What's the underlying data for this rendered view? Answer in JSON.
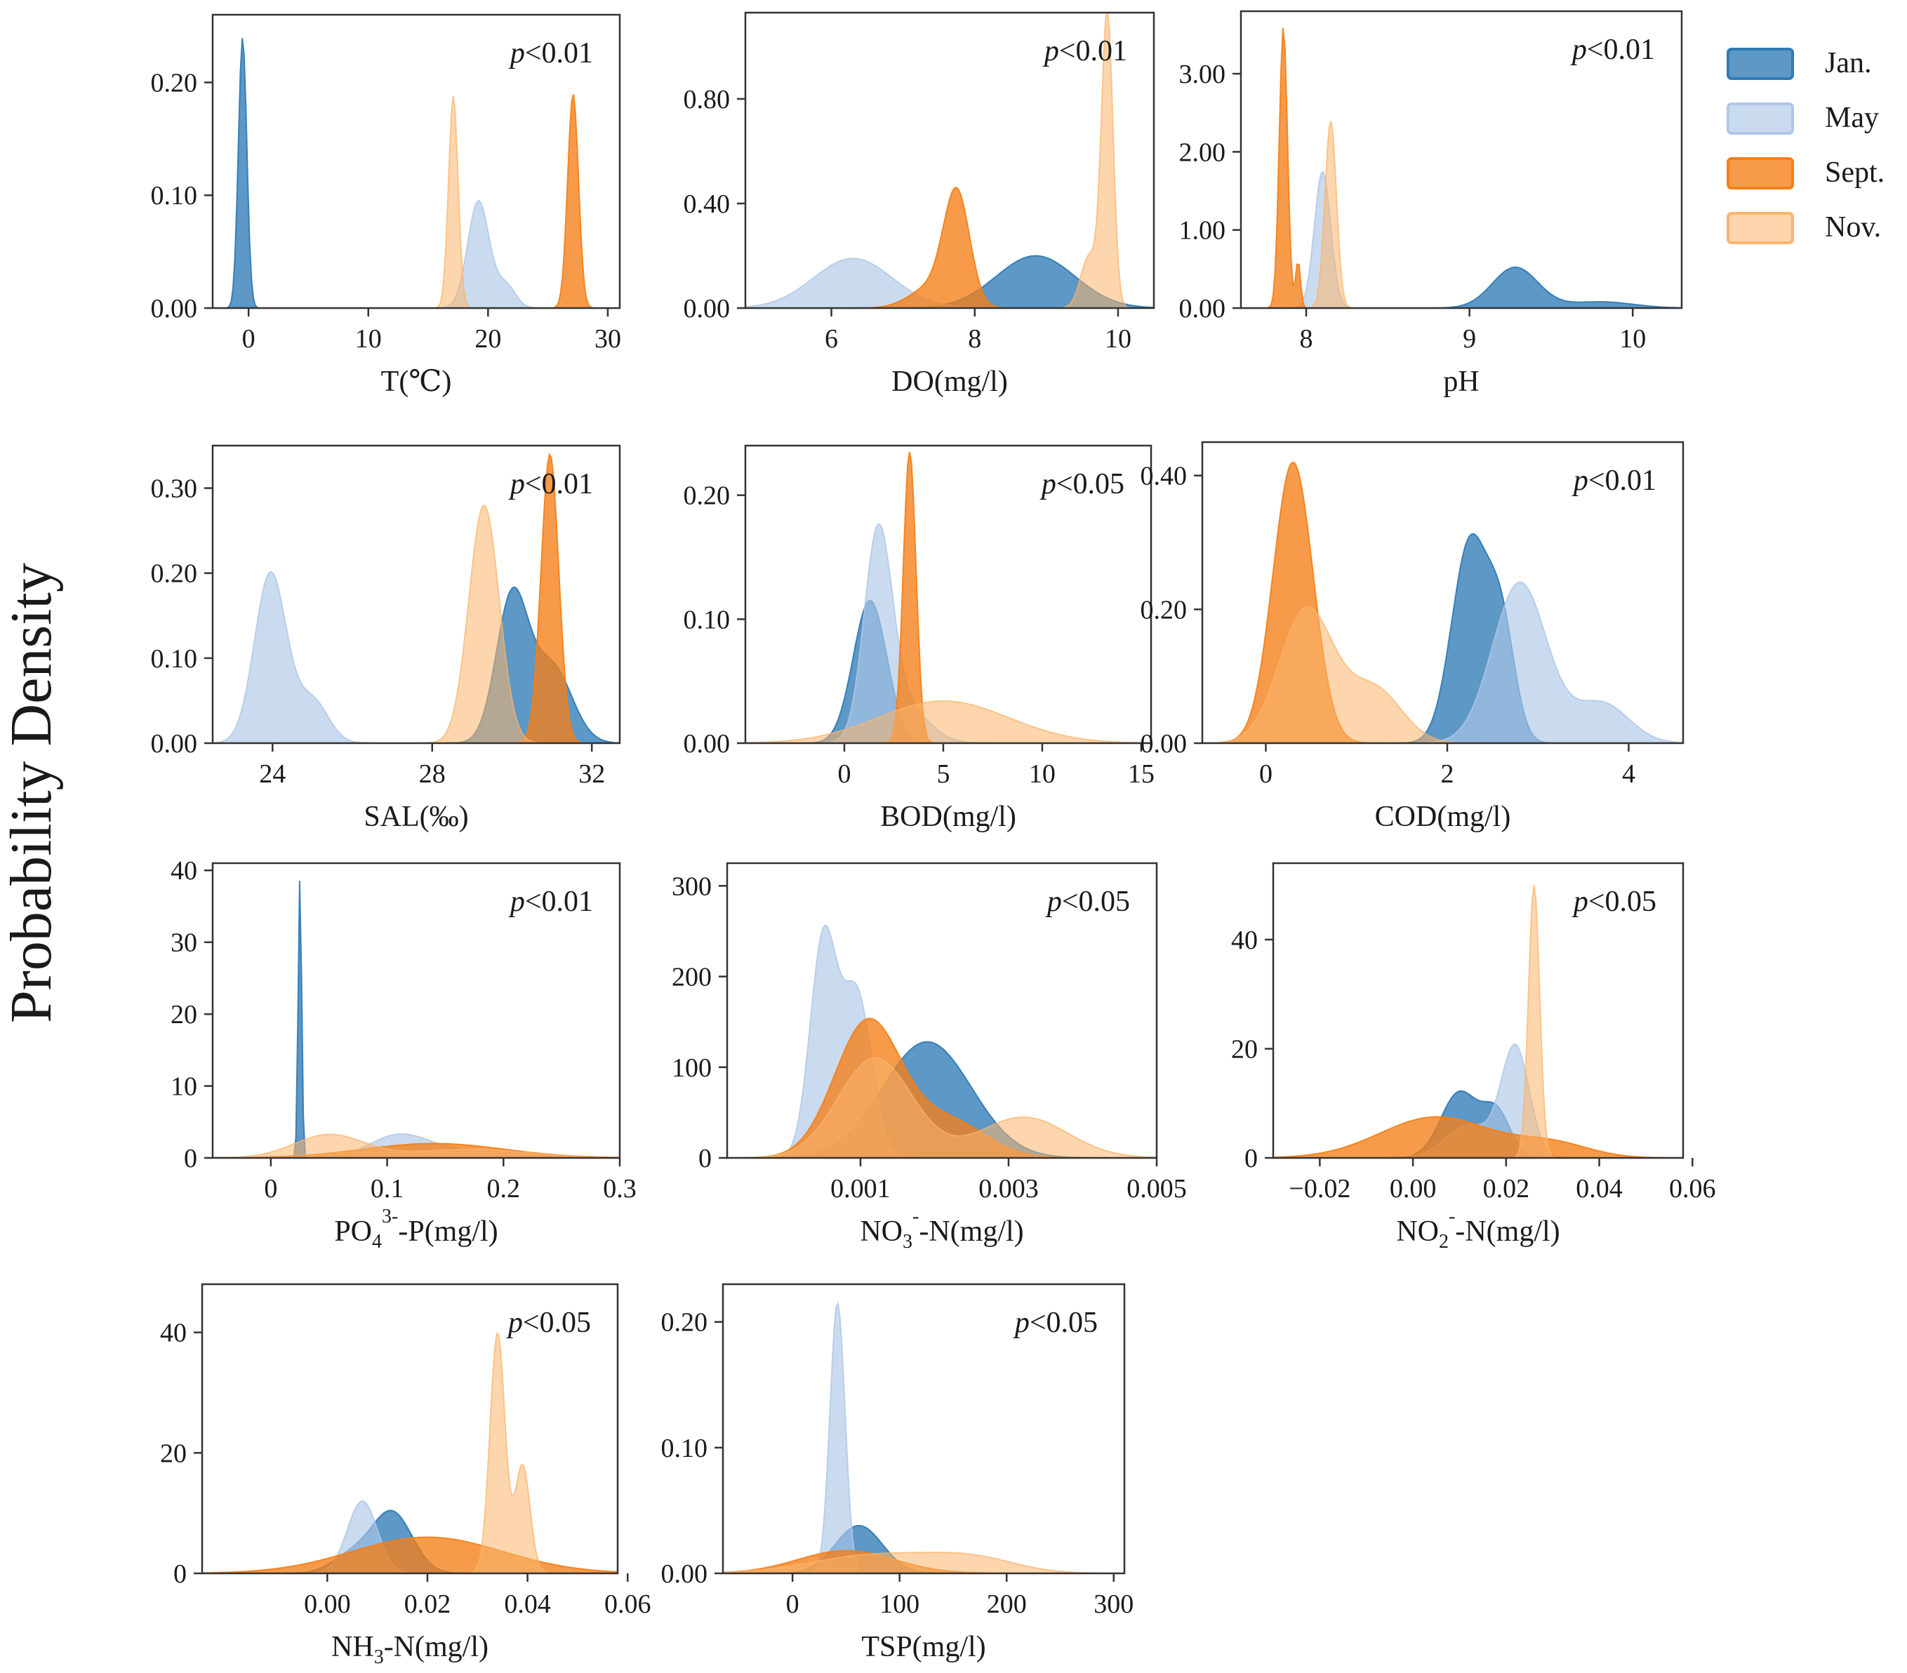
{
  "figure": {
    "y_label": "Probability Density",
    "legend": [
      {
        "key": "jan",
        "label": "Jan.",
        "color": "#2f7bb6",
        "opacity": 0.78
      },
      {
        "key": "may",
        "label": "May",
        "color": "#aec7e8",
        "opacity": 0.65
      },
      {
        "key": "sept",
        "label": "Sept.",
        "color": "#f57f17",
        "opacity": 0.78
      },
      {
        "key": "nov",
        "label": "Nov.",
        "color": "#fbb46b",
        "opacity": 0.55
      }
    ]
  },
  "chart_data": [
    {
      "id": "T",
      "type": "area",
      "title": "",
      "xlabel_parts": [
        [
          "T(",
          "n"
        ],
        [
          "℃",
          "n"
        ],
        [
          ")",
          "n"
        ]
      ],
      "pvalue": "<0.01",
      "xlim": [
        -3,
        31
      ],
      "ylim": [
        0,
        0.26
      ],
      "xticks": [
        {
          "v": 0,
          "t": "0"
        },
        {
          "v": 10,
          "t": "10"
        },
        {
          "v": 20,
          "t": "20"
        },
        {
          "v": 30,
          "t": "30"
        }
      ],
      "yticks": [
        {
          "v": 0,
          "t": "0.00"
        },
        {
          "v": 0.1,
          "t": "0.10"
        },
        {
          "v": 0.2,
          "t": "0.20"
        }
      ],
      "series": [
        {
          "key": "jan",
          "comps": [
            [
              -0.5,
              0.35,
              0.24
            ]
          ]
        },
        {
          "key": "may",
          "comps": [
            [
              19.2,
              0.9,
              0.095
            ],
            [
              21.5,
              0.8,
              0.02
            ]
          ]
        },
        {
          "key": "sept",
          "comps": [
            [
              27.1,
              0.45,
              0.19
            ]
          ]
        },
        {
          "key": "nov",
          "comps": [
            [
              17.1,
              0.4,
              0.188
            ]
          ]
        }
      ]
    },
    {
      "id": "DO",
      "type": "area",
      "xlabel_parts": [
        [
          "DO(mg/l)",
          "n"
        ]
      ],
      "pvalue": "<0.01",
      "xlim": [
        4.8,
        10.5
      ],
      "ylim": [
        0,
        1.13
      ],
      "xticks": [
        {
          "v": 6,
          "t": "6"
        },
        {
          "v": 8,
          "t": "8"
        },
        {
          "v": 10,
          "t": "10"
        }
      ],
      "yticks": [
        {
          "v": 0,
          "t": "0.00"
        },
        {
          "v": 0.4,
          "t": "0.40"
        },
        {
          "v": 0.8,
          "t": "0.80"
        }
      ],
      "series": [
        {
          "key": "jan",
          "comps": [
            [
              8.85,
              0.55,
              0.2
            ]
          ]
        },
        {
          "key": "may",
          "comps": [
            [
              6.3,
              0.55,
              0.19
            ]
          ]
        },
        {
          "key": "sept",
          "comps": [
            [
              7.75,
              0.18,
              0.42
            ],
            [
              7.4,
              0.3,
              0.08
            ]
          ]
        },
        {
          "key": "nov",
          "comps": [
            [
              9.85,
              0.08,
              1.12
            ],
            [
              9.6,
              0.12,
              0.2
            ]
          ]
        }
      ]
    },
    {
      "id": "pH",
      "type": "area",
      "xlabel_parts": [
        [
          "pH",
          "n"
        ]
      ],
      "pvalue": "<0.01",
      "xlim": [
        7.6,
        10.3
      ],
      "ylim": [
        0,
        3.8
      ],
      "xticks": [
        {
          "v": 8,
          "t": "8"
        },
        {
          "v": 9,
          "t": "9"
        },
        {
          "v": 10,
          "t": "10"
        }
      ],
      "yticks": [
        {
          "v": 0,
          "t": "0.00"
        },
        {
          "v": 1,
          "t": "1.00"
        },
        {
          "v": 2,
          "t": "2.00"
        },
        {
          "v": 3,
          "t": "3.00"
        }
      ],
      "series": [
        {
          "key": "jan",
          "comps": [
            [
              9.28,
              0.14,
              0.52
            ],
            [
              9.8,
              0.2,
              0.08
            ]
          ]
        },
        {
          "key": "may",
          "comps": [
            [
              8.1,
              0.05,
              1.75
            ]
          ]
        },
        {
          "key": "sept",
          "comps": [
            [
              7.86,
              0.025,
              3.6
            ],
            [
              7.95,
              0.015,
              0.6
            ]
          ]
        },
        {
          "key": "nov",
          "comps": [
            [
              8.15,
              0.035,
              2.4
            ]
          ]
        }
      ]
    },
    {
      "id": "SAL",
      "type": "area",
      "xlabel_parts": [
        [
          "SAL(‰)",
          "n"
        ]
      ],
      "pvalue": "<0.01",
      "xlim": [
        22.5,
        32.7
      ],
      "ylim": [
        0,
        0.35
      ],
      "xticks": [
        {
          "v": 24,
          "t": "24"
        },
        {
          "v": 28,
          "t": "28"
        },
        {
          "v": 32,
          "t": "32"
        }
      ],
      "yticks": [
        {
          "v": 0,
          "t": "0.00"
        },
        {
          "v": 0.1,
          "t": "0.10"
        },
        {
          "v": 0.2,
          "t": "0.20"
        },
        {
          "v": 0.3,
          "t": "0.30"
        }
      ],
      "series": [
        {
          "key": "jan",
          "comps": [
            [
              30.0,
              0.4,
              0.17
            ],
            [
              31.0,
              0.5,
              0.09
            ]
          ]
        },
        {
          "key": "may",
          "comps": [
            [
              23.95,
              0.4,
              0.2
            ],
            [
              25.0,
              0.4,
              0.05
            ]
          ]
        },
        {
          "key": "sept",
          "comps": [
            [
              30.95,
              0.22,
              0.34
            ]
          ]
        },
        {
          "key": "nov",
          "comps": [
            [
              29.3,
              0.38,
              0.28
            ]
          ]
        }
      ]
    },
    {
      "id": "BOD",
      "type": "area",
      "xlabel_parts": [
        [
          "BOD(mg/l)",
          "n"
        ]
      ],
      "pvalue": "<0.05",
      "xlim": [
        -5,
        15.5
      ],
      "ylim": [
        0,
        0.24
      ],
      "xticks": [
        {
          "v": 0,
          "t": "0"
        },
        {
          "v": 5,
          "t": "5"
        },
        {
          "v": 10,
          "t": "10"
        },
        {
          "v": 15,
          "t": "15"
        }
      ],
      "yticks": [
        {
          "v": 0,
          "t": "0.00"
        },
        {
          "v": 0.1,
          "t": "0.10"
        },
        {
          "v": 0.2,
          "t": "0.20"
        }
      ],
      "series": [
        {
          "key": "jan",
          "comps": [
            [
              1.3,
              0.85,
              0.115
            ]
          ]
        },
        {
          "key": "may",
          "comps": [
            [
              1.7,
              0.7,
              0.16
            ],
            [
              3.0,
              1.2,
              0.03
            ]
          ]
        },
        {
          "key": "sept",
          "comps": [
            [
              3.3,
              0.32,
              0.235
            ]
          ]
        },
        {
          "key": "nov",
          "comps": [
            [
              5.0,
              3.3,
              0.034
            ]
          ]
        }
      ]
    },
    {
      "id": "COD",
      "type": "area",
      "xlabel_parts": [
        [
          "COD(mg/l)",
          "n"
        ]
      ],
      "pvalue": "<0.01",
      "xlim": [
        -0.7,
        4.6
      ],
      "ylim": [
        0,
        0.45
      ],
      "xticks": [
        {
          "v": 0,
          "t": "0"
        },
        {
          "v": 2,
          "t": "2"
        },
        {
          "v": 4,
          "t": "4"
        }
      ],
      "yticks": [
        {
          "v": 0,
          "t": "0.00"
        },
        {
          "v": 0.2,
          "t": "0.20"
        },
        {
          "v": 0.4,
          "t": "0.40"
        }
      ],
      "series": [
        {
          "key": "jan",
          "comps": [
            [
              2.25,
              0.2,
              0.3
            ],
            [
              2.6,
              0.15,
              0.16
            ]
          ]
        },
        {
          "key": "may",
          "comps": [
            [
              2.8,
              0.3,
              0.24
            ],
            [
              3.7,
              0.3,
              0.06
            ]
          ]
        },
        {
          "key": "sept",
          "comps": [
            [
              0.3,
              0.22,
              0.42
            ]
          ]
        },
        {
          "key": "nov",
          "comps": [
            [
              0.45,
              0.3,
              0.2
            ],
            [
              1.2,
              0.3,
              0.08
            ]
          ]
        }
      ]
    },
    {
      "id": "PO4",
      "type": "area",
      "xlabel_parts": [
        [
          "PO",
          "n"
        ],
        [
          "4",
          "sub"
        ],
        [
          "3-",
          "sup"
        ],
        [
          "-P(mg/l)",
          "n"
        ]
      ],
      "pvalue": "<0.01",
      "xlim": [
        -0.05,
        0.3
      ],
      "ylim": [
        0,
        41
      ],
      "xticks": [
        {
          "v": 0,
          "t": "0"
        },
        {
          "v": 0.1,
          "t": "0.1"
        },
        {
          "v": 0.2,
          "t": "0.2"
        },
        {
          "v": 0.3,
          "t": "0.3"
        }
      ],
      "yticks": [
        {
          "v": 0,
          "t": "0"
        },
        {
          "v": 10,
          "t": "10"
        },
        {
          "v": 20,
          "t": "20"
        },
        {
          "v": 30,
          "t": "30"
        },
        {
          "v": 40,
          "t": "40"
        }
      ],
      "series": [
        {
          "key": "jan",
          "comps": [
            [
              0.025,
              0.0015,
              39
            ]
          ]
        },
        {
          "key": "may",
          "comps": [
            [
              0.11,
              0.025,
              3.0
            ],
            [
              0.17,
              0.04,
              1.0
            ]
          ]
        },
        {
          "key": "sept",
          "comps": [
            [
              0.14,
              0.06,
              2.0
            ]
          ]
        },
        {
          "key": "nov",
          "comps": [
            [
              0.05,
              0.03,
              3.2
            ],
            [
              0.17,
              0.05,
              1.2
            ]
          ]
        }
      ]
    },
    {
      "id": "NO3",
      "type": "area",
      "xlabel_parts": [
        [
          "NO",
          "n"
        ],
        [
          "3",
          "sub"
        ],
        [
          "-",
          "sup"
        ],
        [
          "-N(mg/l)",
          "n"
        ]
      ],
      "pvalue": "<0.05",
      "xlim": [
        -0.0008,
        0.005
      ],
      "ylim": [
        0,
        325
      ],
      "xticks": [
        {
          "v": 0.001,
          "t": "0.001"
        },
        {
          "v": 0.003,
          "t": "0.003"
        },
        {
          "v": 0.005,
          "t": "0.005"
        }
      ],
      "yticks": [
        {
          "v": 0,
          "t": "0"
        },
        {
          "v": 100,
          "t": "100"
        },
        {
          "v": 200,
          "t": "200"
        },
        {
          "v": 300,
          "t": "300"
        }
      ],
      "series": [
        {
          "key": "jan",
          "comps": [
            [
              0.0019,
              0.0006,
              128
            ]
          ]
        },
        {
          "key": "may",
          "comps": [
            [
              0.0005,
              0.00018,
              240
            ],
            [
              0.00095,
              0.0002,
              180
            ]
          ]
        },
        {
          "key": "sept",
          "comps": [
            [
              0.0011,
              0.00045,
              150
            ],
            [
              0.0022,
              0.0005,
              40
            ]
          ]
        },
        {
          "key": "nov",
          "comps": [
            [
              0.0012,
              0.0005,
              110
            ],
            [
              0.0032,
              0.0006,
              45
            ]
          ]
        }
      ]
    },
    {
      "id": "NO2",
      "type": "area",
      "xlabel_parts": [
        [
          "NO",
          "n"
        ],
        [
          "2",
          "sub"
        ],
        [
          "-",
          "sup"
        ],
        [
          "-N(mg/l)",
          "n"
        ]
      ],
      "pvalue": "<0.05",
      "xlim": [
        -0.03,
        0.058
      ],
      "ylim": [
        0,
        54
      ],
      "xticks": [
        {
          "v": -0.02,
          "t": "−0.02"
        },
        {
          "v": 0,
          "t": "0.00"
        },
        {
          "v": 0.02,
          "t": "0.02"
        },
        {
          "v": 0.04,
          "t": "0.04"
        },
        {
          "v": 0.06,
          "t": "0.06"
        }
      ],
      "yticks": [
        {
          "v": 0,
          "t": "0"
        },
        {
          "v": 20,
          "t": "20"
        },
        {
          "v": 40,
          "t": "40"
        }
      ],
      "series": [
        {
          "key": "jan",
          "comps": [
            [
              0.01,
              0.004,
              12
            ],
            [
              0.018,
              0.003,
              8
            ]
          ]
        },
        {
          "key": "may",
          "comps": [
            [
              0.022,
              0.003,
              20
            ],
            [
              0.012,
              0.005,
              6
            ]
          ]
        },
        {
          "key": "sept",
          "comps": [
            [
              0.005,
              0.012,
              7.5
            ],
            [
              0.03,
              0.008,
              2.5
            ]
          ]
        },
        {
          "key": "nov",
          "comps": [
            [
              0.026,
              0.0012,
              50
            ]
          ]
        }
      ]
    },
    {
      "id": "NH3",
      "type": "area",
      "xlabel_parts": [
        [
          "NH",
          "n"
        ],
        [
          "3",
          "sub"
        ],
        [
          "-N(mg/l)",
          "n"
        ]
      ],
      "pvalue": "<0.05",
      "xlim": [
        -0.025,
        0.058
      ],
      "ylim": [
        0,
        48
      ],
      "xticks": [
        {
          "v": 0,
          "t": "0.00"
        },
        {
          "v": 0.02,
          "t": "0.02"
        },
        {
          "v": 0.04,
          "t": "0.04"
        },
        {
          "v": 0.06,
          "t": "0.06"
        }
      ],
      "yticks": [
        {
          "v": 0,
          "t": "0"
        },
        {
          "v": 20,
          "t": "20"
        },
        {
          "v": 40,
          "t": "40"
        }
      ],
      "series": [
        {
          "key": "jan",
          "comps": [
            [
              0.013,
              0.004,
              10
            ],
            [
              0.005,
              0.004,
              3
            ]
          ]
        },
        {
          "key": "may",
          "comps": [
            [
              0.007,
              0.003,
              12
            ]
          ]
        },
        {
          "key": "sept",
          "comps": [
            [
              0.02,
              0.015,
              6
            ]
          ]
        },
        {
          "key": "nov",
          "comps": [
            [
              0.034,
              0.0015,
              40
            ],
            [
              0.039,
              0.0015,
              18
            ]
          ]
        }
      ]
    },
    {
      "id": "TSP",
      "type": "area",
      "xlabel_parts": [
        [
          "TSP(mg/l)",
          "n"
        ]
      ],
      "pvalue": "<0.05",
      "xlim": [
        -65,
        310
      ],
      "ylim": [
        0,
        0.23
      ],
      "xticks": [
        {
          "v": 0,
          "t": "0"
        },
        {
          "v": 100,
          "t": "100"
        },
        {
          "v": 200,
          "t": "200"
        },
        {
          "v": 300,
          "t": "300"
        }
      ],
      "yticks": [
        {
          "v": 0,
          "t": "0.00"
        },
        {
          "v": 0.1,
          "t": "0.10"
        },
        {
          "v": 0.2,
          "t": "0.20"
        }
      ],
      "series": [
        {
          "key": "jan",
          "comps": [
            [
              62,
              22,
              0.038
            ]
          ]
        },
        {
          "key": "may",
          "comps": [
            [
              42,
              7,
              0.215
            ]
          ]
        },
        {
          "key": "sept",
          "comps": [
            [
              50,
              45,
              0.018
            ]
          ]
        },
        {
          "key": "nov",
          "comps": [
            [
              80,
              60,
              0.015
            ],
            [
              170,
              40,
              0.01
            ]
          ]
        }
      ]
    }
  ]
}
